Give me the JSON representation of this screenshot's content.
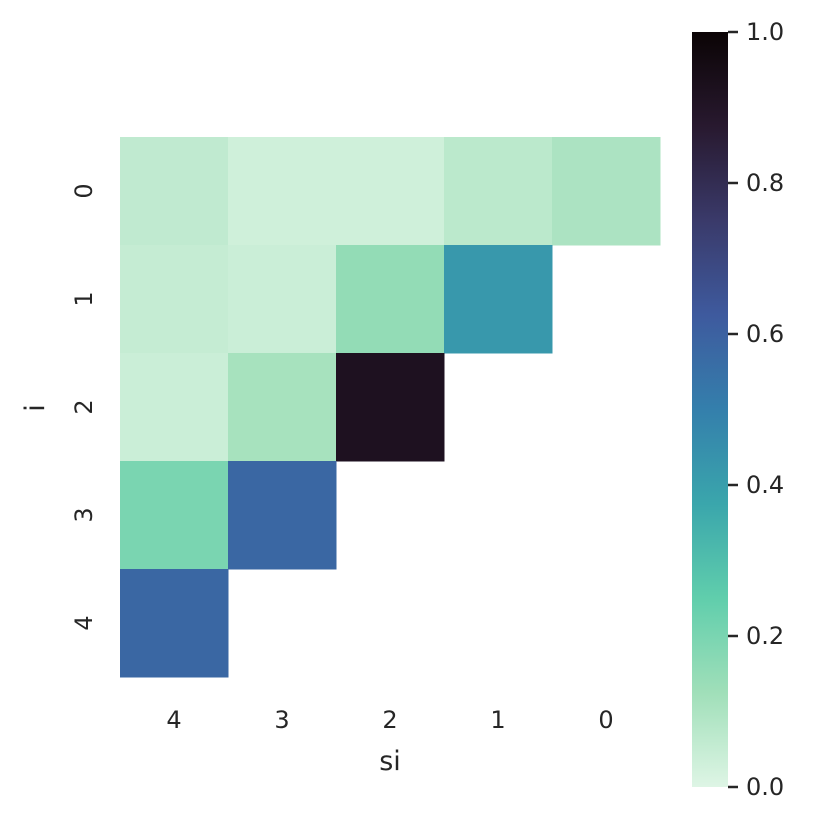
{
  "chart_data": {
    "type": "heatmap",
    "title": "",
    "xlabel": "si",
    "ylabel": "i",
    "x_categories": [
      "4",
      "3",
      "2",
      "1",
      "0"
    ],
    "y_categories": [
      "0",
      "1",
      "2",
      "3",
      "4"
    ],
    "values": [
      [
        0.06,
        0.03,
        0.03,
        0.07,
        0.1
      ],
      [
        0.05,
        0.04,
        0.15,
        0.42,
        null
      ],
      [
        0.04,
        0.11,
        0.92,
        null,
        null
      ],
      [
        0.2,
        0.58,
        null,
        null,
        null
      ],
      [
        0.58,
        null,
        null,
        null,
        null
      ]
    ],
    "colorbar": {
      "range": [
        0,
        1
      ],
      "ticks": [
        "0.0",
        "0.2",
        "0.4",
        "0.6",
        "0.8",
        "1.0"
      ],
      "colormap": "mako_r",
      "colormap_stops": [
        "#def5e5",
        "#a0dfb9",
        "#60ceac",
        "#3aa6ac",
        "#347fac",
        "#3e5a9e",
        "#3a3a6a",
        "#28192f",
        "#0b0405"
      ]
    }
  }
}
